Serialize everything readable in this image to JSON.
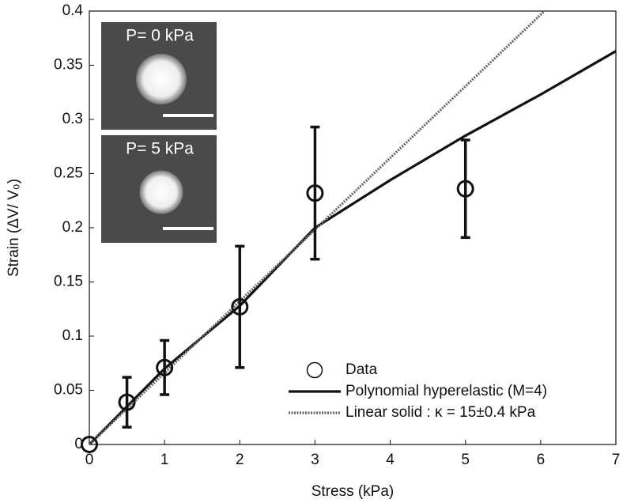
{
  "chart_data": {
    "type": "line",
    "xlabel": "Stress (kPa)",
    "ylabel": "Strain (ΔV/ V₀)",
    "xlim": [
      0,
      7
    ],
    "ylim": [
      0,
      0.4
    ],
    "xticks": [
      0,
      1,
      2,
      3,
      4,
      5,
      6,
      7
    ],
    "yticks": [
      0,
      0.05,
      0.1,
      0.15,
      0.2,
      0.25,
      0.3,
      0.35,
      0.4
    ],
    "legend": "lower right",
    "series": [
      {
        "name": "Data",
        "style": "marker",
        "color": "#111111",
        "x": [
          0,
          0.5,
          1,
          2,
          3,
          5
        ],
        "values": [
          0,
          0.039,
          0.071,
          0.127,
          0.232,
          0.236
        ],
        "errors": [
          0,
          0.023,
          0.025,
          0.056,
          0.061,
          0.045
        ]
      },
      {
        "name": "Polynomial hyperelastic (M=4)",
        "style": "solid",
        "color": "#111111",
        "x": [
          0,
          1,
          2,
          3,
          4,
          5,
          6,
          7
        ],
        "values": [
          0,
          0.07,
          0.128,
          0.2,
          0.244,
          0.285,
          0.323,
          0.363
        ]
      },
      {
        "name": "Linear solid : κ = 15±0.4 kPa",
        "style": "dotted",
        "color": "#666666",
        "x": [
          0,
          6.05
        ],
        "values": [
          0,
          0.4
        ]
      }
    ],
    "insets": [
      {
        "label": "P= 0 kPa",
        "spot": 0.9
      },
      {
        "label": "P= 5 kPa",
        "spot": 0.75
      }
    ]
  }
}
